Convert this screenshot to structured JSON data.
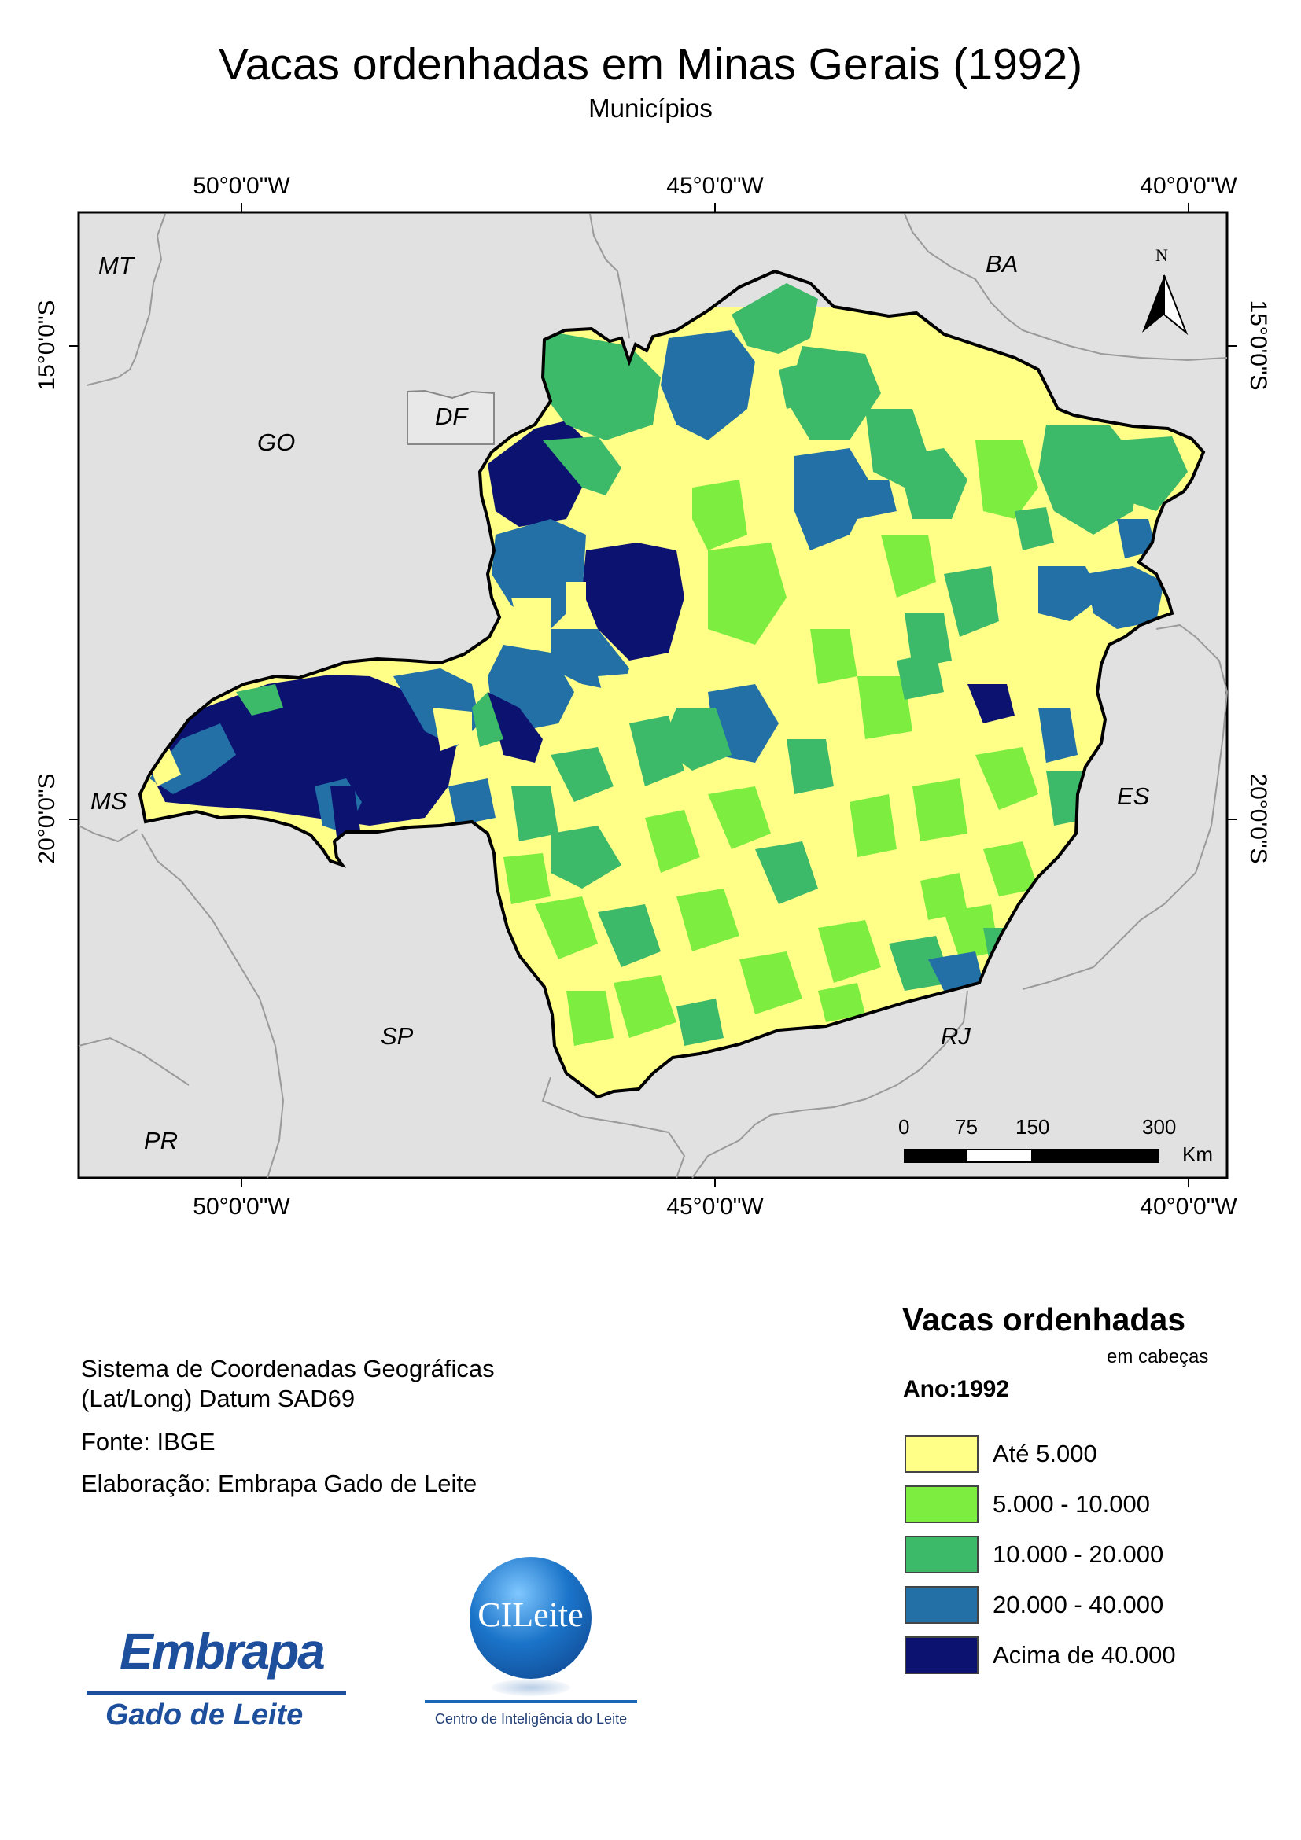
{
  "title": "Vacas ordenhadas em Minas Gerais (1992)",
  "subtitle": "Municípios",
  "colors": {
    "background_land": "#e1e1e1",
    "class_1": "#ffff88",
    "class_2": "#7ded3f",
    "class_3": "#3db96a",
    "class_4": "#2270a6",
    "class_5": "#0c1270",
    "state_border": "#000000",
    "neighbor_border": "#9a9a9a"
  },
  "map": {
    "longitude_ticks": [
      "50°0'0\"W",
      "45°0'0\"W",
      "40°0'0\"W"
    ],
    "latitude_ticks": [
      "15°0'0\"S",
      "20°0'0\"S"
    ],
    "neighbor_labels": {
      "mt": "MT",
      "ba": "BA",
      "go": "GO",
      "df": "DF",
      "ms": "MS",
      "es": "ES",
      "sp": "SP",
      "rj": "RJ",
      "pr": "PR"
    },
    "north_arrow": {
      "label": "N",
      "icon": "north-arrow-icon"
    },
    "scale_bar": {
      "ticks": [
        "0",
        "75",
        "150",
        "300"
      ],
      "unit": "Km"
    }
  },
  "info": {
    "crs_line1": "Sistema de Coordenadas Geográficas",
    "crs_line2": "(Lat/Long) Datum SAD69",
    "source": "Fonte: IBGE",
    "author": "Elaboração: Embrapa Gado de Leite"
  },
  "legend": {
    "title": "Vacas ordenhadas",
    "unit": "em cabeças",
    "year": "Ano:1992",
    "classes": [
      {
        "label": "Até 5.000",
        "color": "#ffff88"
      },
      {
        "label": "5.000 - 10.000",
        "color": "#7ded3f"
      },
      {
        "label": "10.000 - 20.000",
        "color": "#3db96a"
      },
      {
        "label": "20.000 - 40.000",
        "color": "#2270a6"
      },
      {
        "label": "Acima de 40.000",
        "color": "#0c1270"
      }
    ]
  },
  "logos": {
    "embrapa_word": "Embrapa",
    "embrapa_sub": "Gado de Leite",
    "cileite_word": "CILeite",
    "cileite_caption": "Centro de Inteligência do Leite"
  }
}
